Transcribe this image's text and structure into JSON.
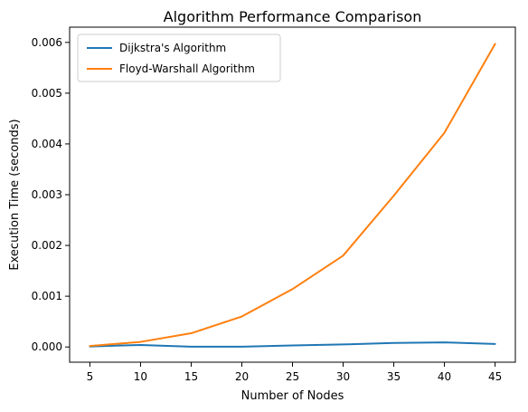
{
  "chart_data": {
    "type": "line",
    "title": "Algorithm Performance Comparison",
    "xlabel": "Number of Nodes",
    "ylabel": "Execution Time (seconds)",
    "x": [
      5,
      10,
      15,
      20,
      25,
      30,
      35,
      40,
      45
    ],
    "x_ticks": [
      5,
      10,
      15,
      20,
      25,
      30,
      35,
      40,
      45
    ],
    "x_tick_labels": [
      "5",
      "10",
      "15",
      "20",
      "25",
      "30",
      "35",
      "40",
      "45"
    ],
    "y_ticks": [
      0.0,
      0.001,
      0.002,
      0.003,
      0.004,
      0.005,
      0.006
    ],
    "y_tick_labels": [
      "0.000",
      "0.001",
      "0.002",
      "0.003",
      "0.004",
      "0.005",
      "0.006"
    ],
    "xlim": [
      3,
      47
    ],
    "ylim": [
      -0.0003,
      0.0063
    ],
    "grid": false,
    "legend_position": "top-left",
    "series": [
      {
        "name": "Dijkstra's Algorithm",
        "color": "#1f77b4",
        "values": [
          1e-05,
          4e-05,
          5e-06,
          5e-06,
          3e-05,
          5e-05,
          8e-05,
          9e-05,
          6e-05
        ]
      },
      {
        "name": "Floyd-Warshall Algorithm",
        "color": "#ff7f0e",
        "values": [
          2e-05,
          0.0001,
          0.00027,
          0.0006,
          0.00114,
          0.0018,
          0.00298,
          0.00422,
          0.00597
        ]
      }
    ]
  }
}
